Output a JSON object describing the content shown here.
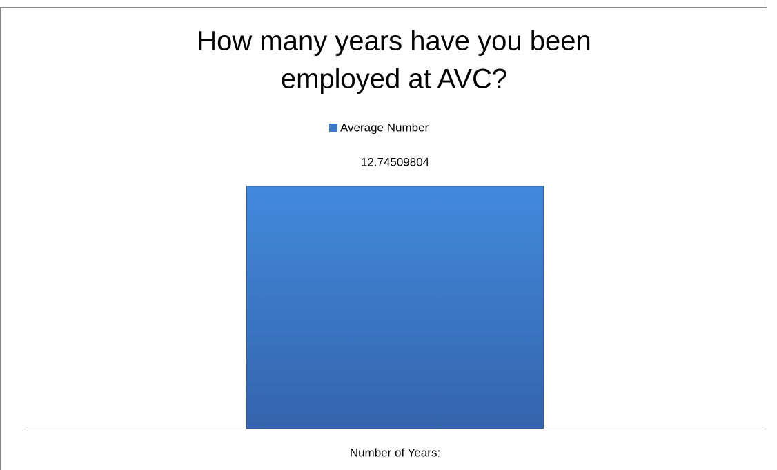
{
  "chart_data": {
    "type": "bar",
    "title": [
      "How many years have you been",
      "employed at AVC?"
    ],
    "categories": [
      "Number of Years:"
    ],
    "series": [
      {
        "name": "Average Number",
        "color": "#3c78c8",
        "values": [
          12.74509804
        ]
      }
    ],
    "legend": "top"
  }
}
